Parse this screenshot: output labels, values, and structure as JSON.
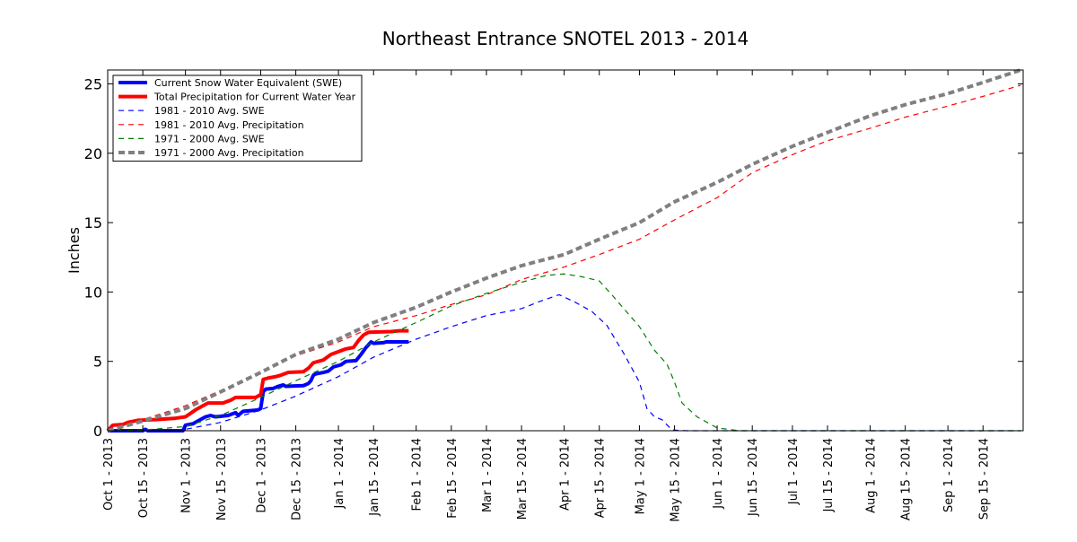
{
  "chart_data": {
    "type": "line",
    "title": "Northeast Entrance SNOTEL 2013 - 2014",
    "xlabel": "",
    "ylabel": "Inches",
    "ylim": [
      0,
      26
    ],
    "xlim": [
      "2013-10-01",
      "2014-09-30"
    ],
    "yticks": [
      0,
      5,
      10,
      15,
      20,
      25
    ],
    "xticks": [
      {
        "date": "2013-10-01",
        "label": "Oct 1 - 2013"
      },
      {
        "date": "2013-10-15",
        "label": "Oct 15 - 2013"
      },
      {
        "date": "2013-11-01",
        "label": "Nov 1 - 2013"
      },
      {
        "date": "2013-11-15",
        "label": "Nov 15 - 2013"
      },
      {
        "date": "2013-12-01",
        "label": "Dec 1 - 2013"
      },
      {
        "date": "2013-12-15",
        "label": "Dec 15 - 2013"
      },
      {
        "date": "2014-01-01",
        "label": "Jan 1 - 2014"
      },
      {
        "date": "2014-01-15",
        "label": "Jan 15 - 2014"
      },
      {
        "date": "2014-02-01",
        "label": "Feb 1 - 2014"
      },
      {
        "date": "2014-02-15",
        "label": "Feb 15 - 2014"
      },
      {
        "date": "2014-03-01",
        "label": "Mar 1 - 2014"
      },
      {
        "date": "2014-03-15",
        "label": "Mar 15 - 2014"
      },
      {
        "date": "2014-04-01",
        "label": "Apr 1 - 2014"
      },
      {
        "date": "2014-04-15",
        "label": "Apr 15 - 2014"
      },
      {
        "date": "2014-05-01",
        "label": "May 1 - 2014"
      },
      {
        "date": "2014-05-15",
        "label": "May 15 - 2014"
      },
      {
        "date": "2014-06-01",
        "label": "Jun 1 - 2014"
      },
      {
        "date": "2014-06-15",
        "label": "Jun 15 - 2014"
      },
      {
        "date": "2014-07-01",
        "label": "Jul 1 - 2014"
      },
      {
        "date": "2014-07-15",
        "label": "Jul 15 - 2014"
      },
      {
        "date": "2014-08-01",
        "label": "Aug 1 - 2014"
      },
      {
        "date": "2014-08-15",
        "label": "Aug 15 - 2014"
      },
      {
        "date": "2014-09-01",
        "label": "Sep 1 - 2014"
      },
      {
        "date": "2014-09-15",
        "label": "Sep 15 - 2014"
      }
    ],
    "grid": false,
    "legend": "top-left",
    "series": [
      {
        "name": "Current Snow Water Equivalent (SWE)",
        "color": "#0000ff",
        "style": "solid",
        "weight": "bold",
        "points": [
          [
            "2013-10-01",
            0
          ],
          [
            "2013-10-15",
            0
          ],
          [
            "2013-10-16",
            0.1
          ],
          [
            "2013-10-17",
            0
          ],
          [
            "2013-10-31",
            0
          ],
          [
            "2013-11-01",
            0.4
          ],
          [
            "2013-11-04",
            0.5
          ],
          [
            "2013-11-06",
            0.7
          ],
          [
            "2013-11-09",
            1.0
          ],
          [
            "2013-11-11",
            1.1
          ],
          [
            "2013-11-13",
            1.0
          ],
          [
            "2013-11-18",
            1.1
          ],
          [
            "2013-11-21",
            1.3
          ],
          [
            "2013-11-22",
            1.1
          ],
          [
            "2013-11-24",
            1.4
          ],
          [
            "2013-11-27",
            1.45
          ],
          [
            "2013-11-30",
            1.5
          ],
          [
            "2013-12-01",
            1.6
          ],
          [
            "2013-12-02",
            2.8
          ],
          [
            "2013-12-03",
            3.0
          ],
          [
            "2013-12-06",
            3.05
          ],
          [
            "2013-12-08",
            3.2
          ],
          [
            "2013-12-10",
            3.3
          ],
          [
            "2013-12-11",
            3.2
          ],
          [
            "2013-12-18",
            3.25
          ],
          [
            "2013-12-20",
            3.4
          ],
          [
            "2013-12-21",
            3.6
          ],
          [
            "2013-12-22",
            4.0
          ],
          [
            "2013-12-23",
            4.1
          ],
          [
            "2013-12-26",
            4.2
          ],
          [
            "2013-12-28",
            4.3
          ],
          [
            "2013-12-30",
            4.6
          ],
          [
            "2014-01-02",
            4.75
          ],
          [
            "2014-01-04",
            5.0
          ],
          [
            "2014-01-08",
            5.05
          ],
          [
            "2014-01-10",
            5.5
          ],
          [
            "2014-01-12",
            6.0
          ],
          [
            "2014-01-14",
            6.4
          ],
          [
            "2014-01-15",
            6.3
          ],
          [
            "2014-01-19",
            6.35
          ],
          [
            "2014-01-20",
            6.4
          ],
          [
            "2014-01-29",
            6.4
          ]
        ]
      },
      {
        "name": "Total Precipitation for Current Water Year",
        "color": "#ff0000",
        "style": "solid",
        "weight": "bold",
        "points": [
          [
            "2013-10-01",
            0
          ],
          [
            "2013-10-02",
            0.2
          ],
          [
            "2013-10-03",
            0.4
          ],
          [
            "2013-10-07",
            0.45
          ],
          [
            "2013-10-09",
            0.6
          ],
          [
            "2013-10-13",
            0.75
          ],
          [
            "2013-10-20",
            0.8
          ],
          [
            "2013-10-28",
            0.9
          ],
          [
            "2013-11-01",
            1.0
          ],
          [
            "2013-11-03",
            1.25
          ],
          [
            "2013-11-05",
            1.5
          ],
          [
            "2013-11-08",
            1.8
          ],
          [
            "2013-11-10",
            2.0
          ],
          [
            "2013-11-16",
            2.0
          ],
          [
            "2013-11-19",
            2.2
          ],
          [
            "2013-11-21",
            2.4
          ],
          [
            "2013-11-29",
            2.4
          ],
          [
            "2013-12-01",
            2.6
          ],
          [
            "2013-12-02",
            3.7
          ],
          [
            "2013-12-04",
            3.8
          ],
          [
            "2013-12-07",
            3.9
          ],
          [
            "2013-12-09",
            4.0
          ],
          [
            "2013-12-12",
            4.2
          ],
          [
            "2013-12-18",
            4.25
          ],
          [
            "2013-12-20",
            4.5
          ],
          [
            "2013-12-22",
            4.9
          ],
          [
            "2013-12-24",
            5.0
          ],
          [
            "2013-12-26",
            5.1
          ],
          [
            "2013-12-29",
            5.5
          ],
          [
            "2014-01-01",
            5.7
          ],
          [
            "2014-01-04",
            5.9
          ],
          [
            "2014-01-07",
            6.0
          ],
          [
            "2014-01-09",
            6.5
          ],
          [
            "2014-01-11",
            6.9
          ],
          [
            "2014-01-13",
            7.1
          ],
          [
            "2014-01-22",
            7.15
          ],
          [
            "2014-01-25",
            7.2
          ],
          [
            "2014-01-29",
            7.2
          ]
        ]
      },
      {
        "name": "1981 - 2010 Avg. SWE",
        "color": "#0000ff",
        "style": "dashed",
        "weight": "thin",
        "points": [
          [
            "2013-10-01",
            0
          ],
          [
            "2013-10-15",
            0
          ],
          [
            "2013-11-01",
            0.1
          ],
          [
            "2013-11-15",
            0.6
          ],
          [
            "2013-12-01",
            1.5
          ],
          [
            "2013-12-15",
            2.5
          ],
          [
            "2014-01-01",
            3.9
          ],
          [
            "2014-01-15",
            5.3
          ],
          [
            "2014-02-01",
            6.6
          ],
          [
            "2014-02-15",
            7.5
          ],
          [
            "2014-03-01",
            8.3
          ],
          [
            "2014-03-15",
            8.8
          ],
          [
            "2014-03-22",
            9.3
          ],
          [
            "2014-03-30",
            9.8
          ],
          [
            "2014-04-05",
            9.3
          ],
          [
            "2014-04-12",
            8.6
          ],
          [
            "2014-04-18",
            7.6
          ],
          [
            "2014-04-25",
            5.5
          ],
          [
            "2014-05-01",
            3.5
          ],
          [
            "2014-05-04",
            1.6
          ],
          [
            "2014-05-07",
            1.0
          ],
          [
            "2014-05-10",
            0.8
          ],
          [
            "2014-05-14",
            0.05
          ],
          [
            "2014-05-20",
            0
          ],
          [
            "2014-09-30",
            0
          ]
        ]
      },
      {
        "name": "1981 - 2010 Avg. Precipitation",
        "color": "#ff0000",
        "style": "dashed",
        "weight": "thin",
        "points": [
          [
            "2013-10-01",
            0
          ],
          [
            "2013-10-15",
            0.8
          ],
          [
            "2013-11-01",
            1.8
          ],
          [
            "2013-11-15",
            2.9
          ],
          [
            "2013-12-01",
            4.2
          ],
          [
            "2013-12-15",
            5.4
          ],
          [
            "2014-01-01",
            6.4
          ],
          [
            "2014-01-15",
            7.5
          ],
          [
            "2014-02-01",
            8.3
          ],
          [
            "2014-02-15",
            9.1
          ],
          [
            "2014-03-01",
            9.8
          ],
          [
            "2014-03-15",
            10.9
          ],
          [
            "2014-04-01",
            11.8
          ],
          [
            "2014-04-15",
            12.7
          ],
          [
            "2014-05-01",
            13.8
          ],
          [
            "2014-05-15",
            15.2
          ],
          [
            "2014-06-01",
            16.8
          ],
          [
            "2014-06-15",
            18.6
          ],
          [
            "2014-07-01",
            19.9
          ],
          [
            "2014-07-15",
            20.9
          ],
          [
            "2014-08-01",
            21.8
          ],
          [
            "2014-08-15",
            22.6
          ],
          [
            "2014-09-01",
            23.4
          ],
          [
            "2014-09-15",
            24.1
          ],
          [
            "2014-09-30",
            24.9
          ]
        ]
      },
      {
        "name": "1971 - 2000 Avg. SWE",
        "color": "#008000",
        "style": "dashed",
        "weight": "thin",
        "points": [
          [
            "2013-10-01",
            0
          ],
          [
            "2013-10-15",
            0.05
          ],
          [
            "2013-11-01",
            0.3
          ],
          [
            "2013-11-15",
            1.1
          ],
          [
            "2013-12-01",
            2.4
          ],
          [
            "2013-12-15",
            3.6
          ],
          [
            "2014-01-01",
            5.0
          ],
          [
            "2014-01-15",
            6.4
          ],
          [
            "2014-02-01",
            7.8
          ],
          [
            "2014-02-15",
            9.0
          ],
          [
            "2014-03-01",
            9.9
          ],
          [
            "2014-03-15",
            10.7
          ],
          [
            "2014-03-25",
            11.2
          ],
          [
            "2014-04-01",
            11.3
          ],
          [
            "2014-04-08",
            11.1
          ],
          [
            "2014-04-15",
            10.8
          ],
          [
            "2014-04-20",
            9.8
          ],
          [
            "2014-05-01",
            7.5
          ],
          [
            "2014-05-07",
            5.8
          ],
          [
            "2014-05-12",
            4.8
          ],
          [
            "2014-05-15",
            3.5
          ],
          [
            "2014-05-18",
            2.0
          ],
          [
            "2014-05-24",
            1.0
          ],
          [
            "2014-06-01",
            0.2
          ],
          [
            "2014-06-10",
            0
          ],
          [
            "2014-09-30",
            0
          ]
        ]
      },
      {
        "name": "1971 - 2000 Avg. Precipitation",
        "color": "#808080",
        "style": "dashed",
        "weight": "bold",
        "points": [
          [
            "2013-10-01",
            0
          ],
          [
            "2013-10-15",
            0.7
          ],
          [
            "2013-11-01",
            1.6
          ],
          [
            "2013-11-15",
            2.8
          ],
          [
            "2013-12-01",
            4.2
          ],
          [
            "2013-12-15",
            5.5
          ],
          [
            "2014-01-01",
            6.6
          ],
          [
            "2014-01-15",
            7.8
          ],
          [
            "2014-02-01",
            8.9
          ],
          [
            "2014-02-15",
            10.0
          ],
          [
            "2014-03-01",
            11.0
          ],
          [
            "2014-03-15",
            11.9
          ],
          [
            "2014-04-01",
            12.7
          ],
          [
            "2014-04-15",
            13.8
          ],
          [
            "2014-05-01",
            15.0
          ],
          [
            "2014-05-15",
            16.5
          ],
          [
            "2014-06-01",
            17.9
          ],
          [
            "2014-06-15",
            19.2
          ],
          [
            "2014-07-01",
            20.5
          ],
          [
            "2014-07-15",
            21.5
          ],
          [
            "2014-08-01",
            22.7
          ],
          [
            "2014-08-15",
            23.5
          ],
          [
            "2014-09-01",
            24.3
          ],
          [
            "2014-09-15",
            25.1
          ],
          [
            "2014-09-30",
            26.0
          ]
        ]
      }
    ]
  }
}
